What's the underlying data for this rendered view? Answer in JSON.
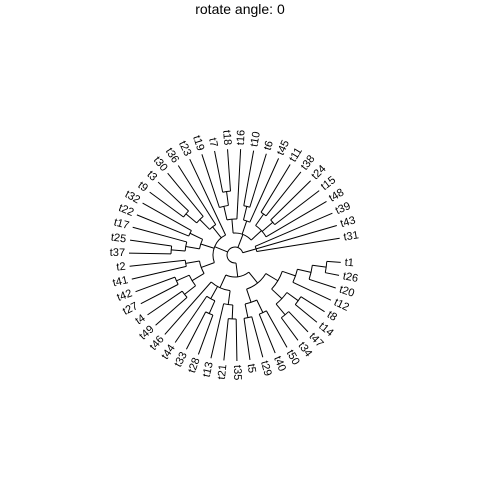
{
  "title": "rotate angle: 0",
  "tips": [
    "t1",
    "t26",
    "t20",
    "t12",
    "t8",
    "t14",
    "t47",
    "t34",
    "t50",
    "t40",
    "t29",
    "t5",
    "t35",
    "t21",
    "t13",
    "t28",
    "t33",
    "t44",
    "t46",
    "t49",
    "t4",
    "t27",
    "t42",
    "t41",
    "t2",
    "t37",
    "t25",
    "t17",
    "t22",
    "t32",
    "t9",
    "t3",
    "t30",
    "t36",
    "t23",
    "t19",
    "t7",
    "t18",
    "t16",
    "t10",
    "t6",
    "t45",
    "t11",
    "t38",
    "t24",
    "t15",
    "t48",
    "t39",
    "t43",
    "t31"
  ],
  "tree": {
    "children": [
      {
        "children": [
          {
            "children": [
              {
                "children": [
                  {
                    "children": [
                      {
                        "children": [
                          {
                            "children": [
                              {
                                "label": "t1"
                              },
                              {
                                "label": "t26"
                              }
                            ]
                          },
                          {
                            "label": "t20"
                          }
                        ]
                      },
                      {
                        "label": "t12"
                      }
                    ]
                  },
                  {
                    "children": [
                      {
                        "children": [
                          {
                            "label": "t8"
                          },
                          {
                            "label": "t14"
                          }
                        ]
                      },
                      {
                        "children": [
                          {
                            "label": "t47"
                          },
                          {
                            "label": "t34"
                          }
                        ]
                      }
                    ]
                  }
                ]
              },
              {
                "children": [
                  {
                    "children": [
                      {
                        "label": "t50"
                      },
                      {
                        "label": "t40"
                      }
                    ]
                  },
                  {
                    "children": [
                      {
                        "label": "t29"
                      },
                      {
                        "label": "t5"
                      }
                    ]
                  }
                ]
              }
            ]
          },
          {
            "children": [
              {
                "children": [
                  {
                    "children": [
                      {
                        "label": "t35"
                      },
                      {
                        "label": "t21"
                      }
                    ]
                  },
                  {
                    "label": "t13"
                  }
                ]
              },
              {
                "children": [
                  {
                    "children": [
                      {
                        "label": "t28"
                      },
                      {
                        "label": "t33"
                      }
                    ]
                  },
                  {
                    "label": "t44"
                  }
                ]
              },
              {
                "label": "t46"
              }
            ]
          }
        ]
      },
      {
        "children": [
          {
            "children": [
              {
                "children": [
                  {
                    "children": [
                      {
                        "label": "t49"
                      },
                      {
                        "label": "t4"
                      }
                    ]
                  },
                  {
                    "children": [
                      {
                        "label": "t27"
                      },
                      {
                        "label": "t42"
                      }
                    ]
                  }
                ]
              },
              {
                "children": [
                  {
                    "label": "t41"
                  },
                  {
                    "label": "t2"
                  }
                ]
              }
            ]
          },
          {
            "children": [
              {
                "children": [
                  {
                    "children": [
                      {
                        "label": "t37"
                      },
                      {
                        "label": "t25"
                      }
                    ]
                  },
                  {
                    "label": "t17"
                  }
                ]
              },
              {
                "children": [
                  {
                    "label": "t22"
                  },
                  {
                    "label": "t32"
                  }
                ]
              }
            ]
          },
          {
            "children": [
              {
                "children": [
                  {
                    "children": [
                      {
                        "label": "t9"
                      },
                      {
                        "label": "t3"
                      }
                    ]
                  },
                  {
                    "label": "t30"
                  }
                ]
              },
              {
                "label": "t36"
              }
            ]
          },
          {
            "label": "t23"
          }
        ]
      },
      {
        "children": [
          {
            "children": [
              {
                "children": [
                  {
                    "label": "t19"
                  },
                  {
                    "children": [
                      {
                        "label": "t7"
                      },
                      {
                        "label": "t18"
                      }
                    ]
                  }
                ]
              },
              {
                "label": "t16"
              }
            ]
          },
          {
            "children": [
              {
                "children": [
                  {
                    "label": "t10"
                  },
                  {
                    "label": "t6"
                  }
                ]
              },
              {
                "label": "t45"
              }
            ]
          },
          {
            "children": [
              {
                "children": [
                  {
                    "label": "t11"
                  },
                  {
                    "label": "t38"
                  }
                ]
              },
              {
                "children": [
                  {
                    "label": "t24"
                  },
                  {
                    "label": "t15"
                  }
                ]
              },
              {
                "label": "t48"
              }
            ]
          }
        ]
      },
      {
        "children": [
          {
            "label": "t39"
          },
          {
            "label": "t43"
          },
          {
            "label": "t31"
          }
        ]
      }
    ]
  }
}
